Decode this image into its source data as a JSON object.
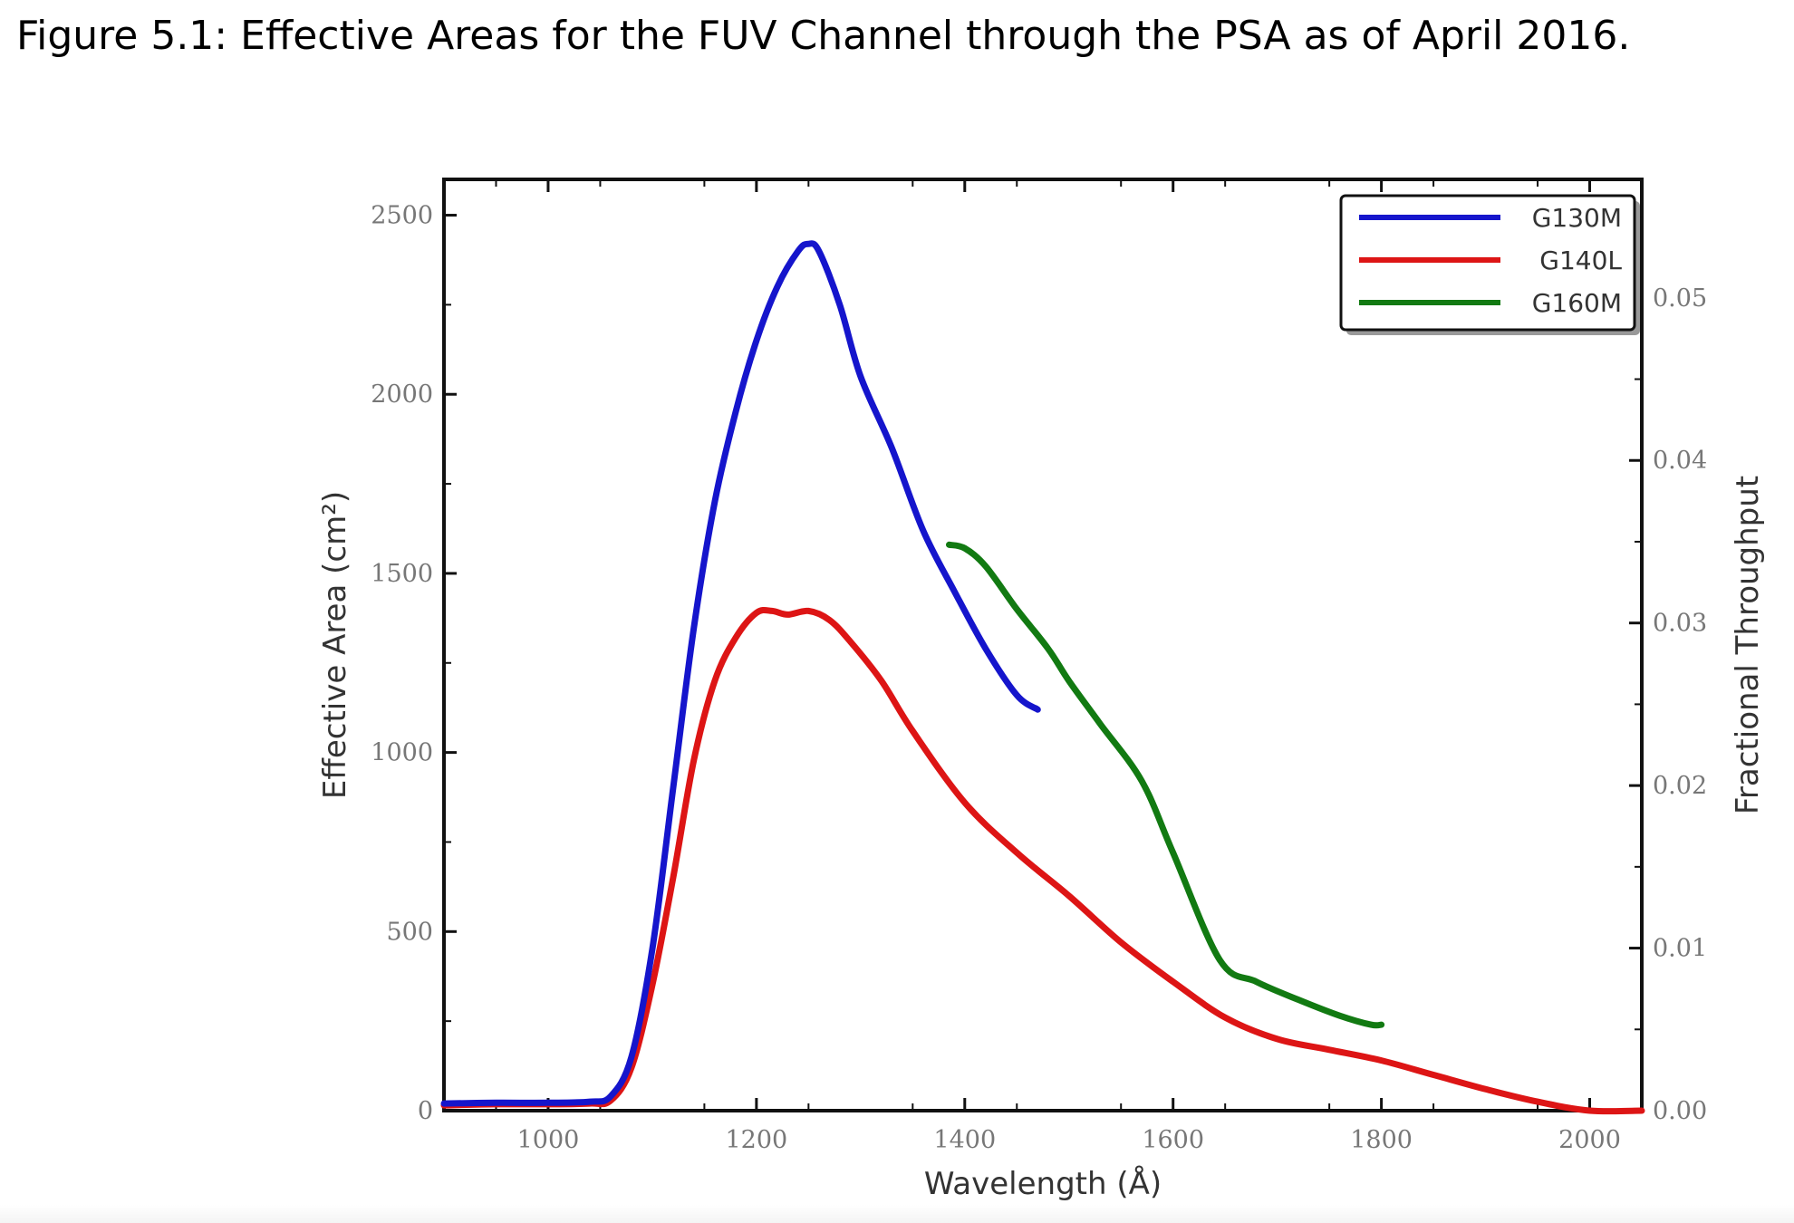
{
  "caption": "Figure 5.1: Effective Areas for the FUV Channel through the PSA as of April 2016.",
  "chart_data": {
    "type": "line",
    "title": "",
    "xlabel": "Wavelength (Å)",
    "ylabel": "Effective Area (cm²)",
    "ylabel_right": "Fractional Throughput",
    "xlim": [
      900,
      2050
    ],
    "ylim": [
      0,
      2600
    ],
    "ylim_right": [
      0,
      0.05729
    ],
    "xticks": [
      1000,
      1200,
      1400,
      1600,
      1800,
      2000
    ],
    "xtick_labels": [
      "1000",
      "1200",
      "1400",
      "1600",
      "1800",
      "2000"
    ],
    "yticks": [
      0,
      500,
      1000,
      1500,
      2000,
      2500
    ],
    "ytick_labels": [
      "0",
      "500",
      "1000",
      "1500",
      "2000",
      "2500"
    ],
    "yticks_right": [
      0,
      0.01,
      0.02,
      0.03,
      0.04,
      0.05
    ],
    "ytick_labels_right": [
      "0.00",
      "0.01",
      "0.02",
      "0.03",
      "0.04",
      "0.05"
    ],
    "grid": false,
    "legend_position": "top-right",
    "series": [
      {
        "name": "G130M",
        "color": "#1515cc",
        "x": [
          900,
          950,
          1000,
          1040,
          1060,
          1080,
          1100,
          1120,
          1140,
          1160,
          1180,
          1200,
          1220,
          1240,
          1250,
          1260,
          1280,
          1300,
          1330,
          1360,
          1390,
          1420,
          1450,
          1470
        ],
        "y": [
          20,
          22,
          22,
          25,
          40,
          150,
          450,
          900,
          1350,
          1700,
          1950,
          2150,
          2300,
          2400,
          2420,
          2400,
          2250,
          2050,
          1850,
          1620,
          1450,
          1290,
          1160,
          1120
        ]
      },
      {
        "name": "G140L",
        "color": "#dd1515",
        "x": [
          900,
          950,
          1000,
          1040,
          1060,
          1080,
          1100,
          1120,
          1140,
          1160,
          1180,
          1200,
          1215,
          1230,
          1250,
          1270,
          1290,
          1320,
          1350,
          1400,
          1450,
          1500,
          1550,
          1600,
          1650,
          1700,
          1750,
          1800,
          1850,
          1900,
          1950,
          2000,
          2050
        ],
        "y": [
          15,
          18,
          18,
          20,
          28,
          120,
          350,
          650,
          980,
          1200,
          1320,
          1390,
          1395,
          1385,
          1395,
          1370,
          1310,
          1200,
          1060,
          860,
          720,
          600,
          470,
          360,
          260,
          200,
          170,
          140,
          100,
          60,
          25,
          0,
          0
        ]
      },
      {
        "name": "G160M",
        "color": "#127a12",
        "x": [
          1385,
          1400,
          1420,
          1450,
          1480,
          1500,
          1530,
          1570,
          1600,
          1645,
          1680,
          1720,
          1760,
          1790,
          1800
        ],
        "y": [
          1580,
          1570,
          1520,
          1400,
          1290,
          1200,
          1080,
          920,
          720,
          420,
          360,
          310,
          265,
          240,
          240
        ]
      }
    ]
  }
}
